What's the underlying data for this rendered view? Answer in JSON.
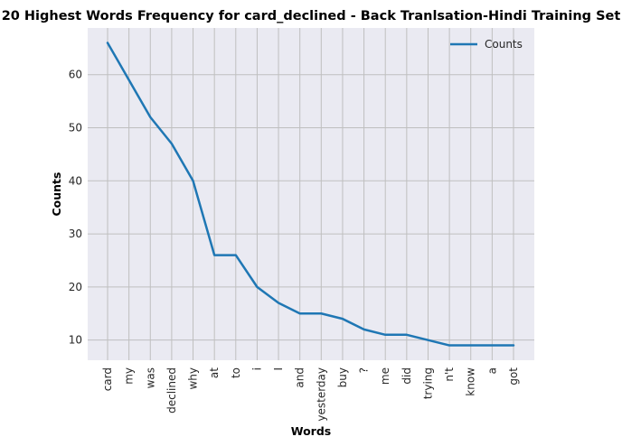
{
  "chart_data": {
    "type": "line",
    "title": "20 Highest Words Frequency for card_declined - Back Tranlsation-Hindi Training Set",
    "xlabel": "Words",
    "ylabel": "Counts",
    "categories": [
      "card",
      "my",
      "was",
      "declined",
      "why",
      "at",
      "to",
      "i",
      "I",
      "and",
      "yesterday",
      "buy",
      "?",
      "me",
      "did",
      "trying",
      "n't",
      "know",
      "a",
      "got"
    ],
    "series": [
      {
        "name": "Counts",
        "values": [
          66,
          59,
          52,
          47,
          40,
          26,
          26,
          20,
          17,
          15,
          15,
          14,
          12,
          11,
          11,
          10,
          9,
          9,
          9,
          9
        ],
        "color": "#1f77b4"
      }
    ],
    "yticks": [
      10,
      20,
      30,
      40,
      50,
      60
    ],
    "ylim": [
      6.2,
      68.8
    ],
    "grid": true,
    "legend": "top-right",
    "background": "#eaeaf2"
  }
}
